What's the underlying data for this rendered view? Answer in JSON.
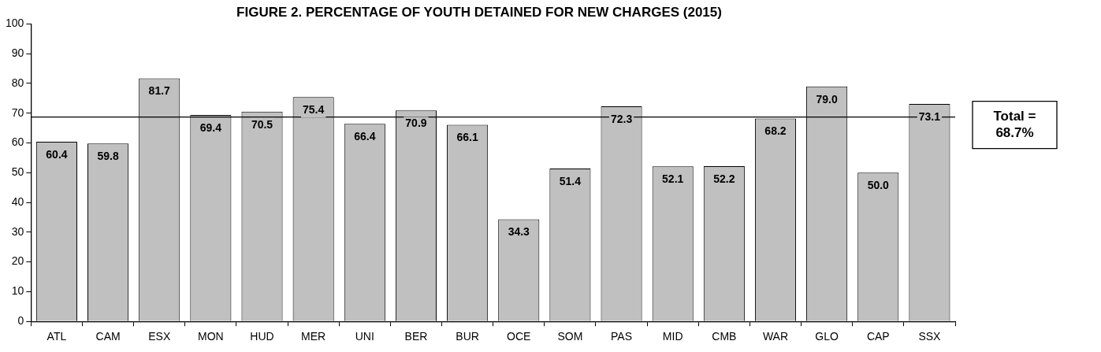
{
  "chart_data": {
    "type": "bar",
    "title": "FIGURE 2. PERCENTAGE OF YOUTH DETAINED FOR NEW CHARGES (2015)",
    "categories": [
      "ATL",
      "CAM",
      "ESX",
      "MON",
      "HUD",
      "MER",
      "UNI",
      "BER",
      "BUR",
      "OCE",
      "SOM",
      "PAS",
      "MID",
      "CMB",
      "WAR",
      "GLO",
      "CAP",
      "SSX"
    ],
    "values": [
      60.4,
      59.8,
      81.7,
      69.4,
      70.5,
      75.4,
      66.4,
      70.9,
      66.1,
      34.3,
      51.4,
      72.3,
      52.1,
      52.2,
      68.2,
      79.0,
      50.0,
      73.1
    ],
    "value_labels": [
      "60.4",
      "59.8",
      "81.7",
      "69.4",
      "70.5",
      "75.4",
      "66.4",
      "70.9",
      "66.1",
      "34.3",
      "51.4",
      "72.3",
      "52.1",
      "52.2",
      "68.2",
      "79.0",
      "50.0",
      "73.1"
    ],
    "color": "#c0c0c0",
    "ylim": [
      0,
      100
    ],
    "yticks": [
      0,
      10,
      20,
      30,
      40,
      50,
      60,
      70,
      80,
      90,
      100
    ],
    "grid": false,
    "legend": false,
    "ref_lines": [
      {
        "axis": "y",
        "value": 68.7,
        "label": "Total = 68.7%",
        "color": "#000000"
      }
    ]
  }
}
